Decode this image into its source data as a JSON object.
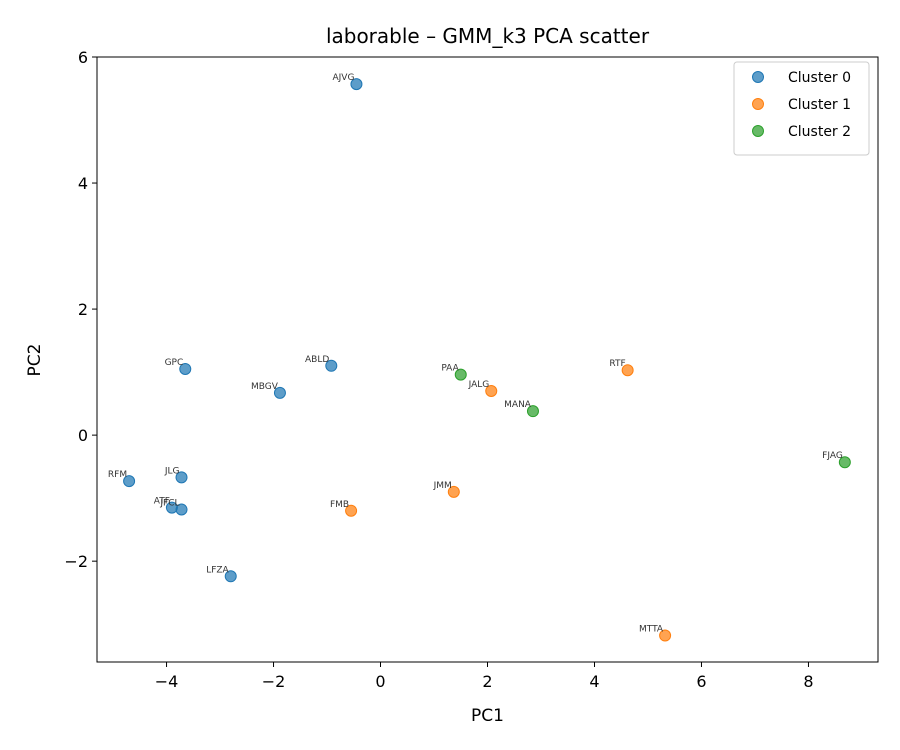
{
  "chart_data": {
    "type": "scatter",
    "title": "laborable – GMM_k3 PCA scatter",
    "xlabel": "PC1",
    "ylabel": "PC2",
    "xlim": [
      -5.3,
      9.3
    ],
    "ylim": [
      -3.6,
      6.0
    ],
    "xticks": [
      -4,
      -2,
      0,
      2,
      4,
      6,
      8
    ],
    "yticks": [
      -2,
      0,
      2,
      4,
      6
    ],
    "legend_position": "top-right",
    "grid": false,
    "series": [
      {
        "name": "Cluster 0",
        "color": "#1f77b4",
        "points": [
          {
            "label": "AJVG",
            "x": -0.45,
            "y": 5.57
          },
          {
            "label": "ABLD",
            "x": -0.92,
            "y": 1.1
          },
          {
            "label": "GPC",
            "x": -3.65,
            "y": 1.05
          },
          {
            "label": "MBGV",
            "x": -1.88,
            "y": 0.67
          },
          {
            "label": "RFM",
            "x": -4.7,
            "y": -0.73
          },
          {
            "label": "JLG",
            "x": -3.72,
            "y": -0.67
          },
          {
            "label": "ATF",
            "x": -3.9,
            "y": -1.15
          },
          {
            "label": "JFCL",
            "x": -3.72,
            "y": -1.18
          },
          {
            "label": "LFZA",
            "x": -2.8,
            "y": -2.24
          }
        ]
      },
      {
        "name": "Cluster 1",
        "color": "#ff7f0e",
        "points": [
          {
            "label": "RTF",
            "x": 4.62,
            "y": 1.03
          },
          {
            "label": "JALG",
            "x": 2.07,
            "y": 0.7
          },
          {
            "label": "JMM",
            "x": 1.37,
            "y": -0.9
          },
          {
            "label": "FMB",
            "x": -0.55,
            "y": -1.2
          },
          {
            "label": "MTTA",
            "x": 5.32,
            "y": -3.18
          }
        ]
      },
      {
        "name": "Cluster 2",
        "color": "#2ca02c",
        "points": [
          {
            "label": "PAA",
            "x": 1.5,
            "y": 0.96
          },
          {
            "label": "MANA",
            "x": 2.85,
            "y": 0.38
          },
          {
            "label": "FJAG",
            "x": 8.68,
            "y": -0.43
          }
        ]
      }
    ]
  }
}
